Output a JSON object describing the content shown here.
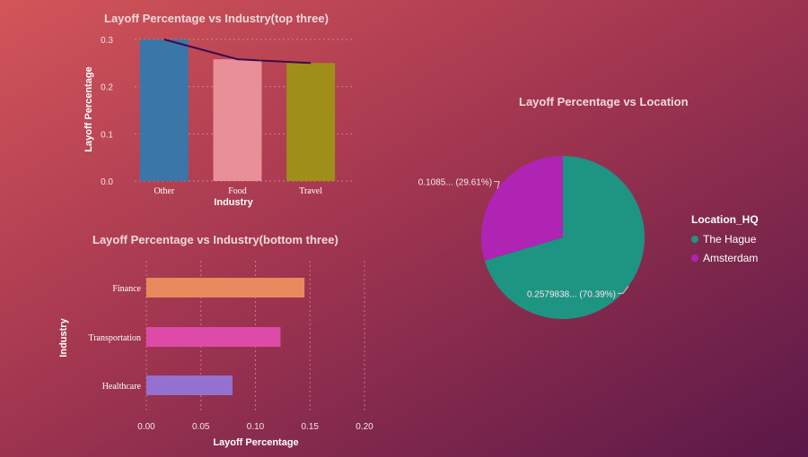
{
  "chart_data": [
    {
      "type": "bar",
      "title": "Layoff Percentage vs Industry(top three)",
      "xlabel": "Industry",
      "ylabel": "Layoff Percentage",
      "categories": [
        "Other",
        "Food",
        "Travel"
      ],
      "values": [
        0.3,
        0.258,
        0.25
      ],
      "line_values": [
        0.3,
        0.258,
        0.25
      ],
      "ylim": [
        0,
        0.3
      ],
      "yticks": [
        0.0,
        0.1,
        0.2,
        0.3
      ],
      "ytick_labels": [
        "0.0",
        "0.1",
        "0.2",
        "0.3"
      ],
      "colors": [
        "#3b76a8",
        "#e88f97",
        "#a08e1a"
      ],
      "line_color": "#3d0a4a",
      "grid": true
    },
    {
      "type": "bar",
      "orientation": "horizontal",
      "title": "Layoff Percentage vs Industry(bottom three)",
      "xlabel": "Layoff Percentage",
      "ylabel": "Industry",
      "categories": [
        "Finance",
        "Transportation",
        "Healthcare"
      ],
      "values": [
        0.145,
        0.123,
        0.079
      ],
      "xlim": [
        0,
        0.2
      ],
      "xticks": [
        0.0,
        0.05,
        0.1,
        0.15,
        0.2
      ],
      "xtick_labels": [
        "0.00",
        "0.05",
        "0.10",
        "0.15",
        "0.20"
      ],
      "colors": [
        "#e88a5e",
        "#dd4aa8",
        "#9470d0"
      ],
      "grid": true
    },
    {
      "type": "pie",
      "title": "Layoff Percentage vs Location",
      "legend_title": "Location_HQ",
      "legend_position": "right",
      "slices": [
        {
          "name": "The Hague",
          "value": 0.2579838,
          "percent": 70.39,
          "label": "0.2579838... (70.39%)",
          "color": "#1e9483"
        },
        {
          "name": "Amsterdam",
          "value": 0.1085,
          "percent": 29.61,
          "label": "0.1085... (29.61%)",
          "color": "#b024b4"
        }
      ]
    }
  ]
}
